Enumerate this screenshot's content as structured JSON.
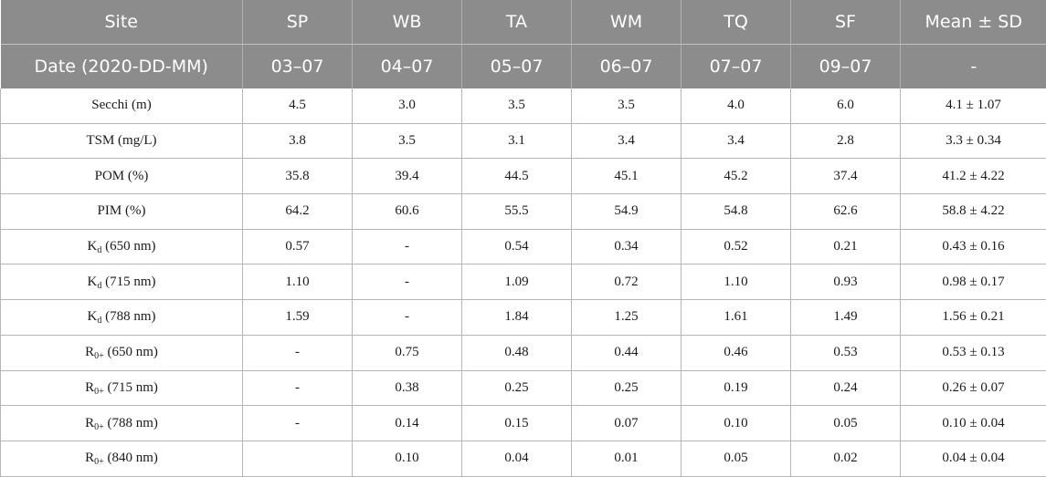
{
  "header": {
    "row1": [
      "Site",
      "SP",
      "WB",
      "TA",
      "WM",
      "TQ",
      "SF",
      "Mean ± SD"
    ],
    "row2": [
      "Date (2020-DD-MM)",
      "03–07",
      "04–07",
      "05–07",
      "06–07",
      "07–07",
      "09–07",
      "-"
    ]
  },
  "rows": [
    {
      "label": {
        "main": "Secchi (m)",
        "sub": "",
        "tail": ""
      },
      "cells": [
        "4.5",
        "3.0",
        "3.5",
        "3.5",
        "4.0",
        "6.0",
        "4.1 ± 1.07"
      ]
    },
    {
      "label": {
        "main": "TSM (mg/L)",
        "sub": "",
        "tail": ""
      },
      "cells": [
        "3.8",
        "3.5",
        "3.1",
        "3.4",
        "3.4",
        "2.8",
        "3.3 ± 0.34"
      ]
    },
    {
      "label": {
        "main": "POM (%)",
        "sub": "",
        "tail": ""
      },
      "cells": [
        "35.8",
        "39.4",
        "44.5",
        "45.1",
        "45.2",
        "37.4",
        "41.2 ± 4.22"
      ]
    },
    {
      "label": {
        "main": "PIM (%)",
        "sub": "",
        "tail": ""
      },
      "cells": [
        "64.2",
        "60.6",
        "55.5",
        "54.9",
        "54.8",
        "62.6",
        "58.8 ± 4.22"
      ]
    },
    {
      "label": {
        "main": "K",
        "sub": "d",
        "tail": " (650 nm)"
      },
      "cells": [
        "0.57",
        "-",
        "0.54",
        "0.34",
        "0.52",
        "0.21",
        "0.43 ± 0.16"
      ]
    },
    {
      "label": {
        "main": "K",
        "sub": "d",
        "tail": " (715 nm)"
      },
      "cells": [
        "1.10",
        "-",
        "1.09",
        "0.72",
        "1.10",
        "0.93",
        "0.98 ± 0.17"
      ]
    },
    {
      "label": {
        "main": "K",
        "sub": "d",
        "tail": " (788 nm)"
      },
      "cells": [
        "1.59",
        "-",
        "1.84",
        "1.25",
        "1.61",
        "1.49",
        "1.56 ± 0.21"
      ]
    },
    {
      "label": {
        "main": "R",
        "sub": "0+",
        "tail": " (650 nm)"
      },
      "cells": [
        "-",
        "0.75",
        "0.48",
        "0.44",
        "0.46",
        "0.53",
        "0.53 ± 0.13"
      ]
    },
    {
      "label": {
        "main": "R",
        "sub": "0+",
        "tail": " (715 nm)"
      },
      "cells": [
        "-",
        "0.38",
        "0.25",
        "0.25",
        "0.19",
        "0.24",
        "0.26 ± 0.07"
      ]
    },
    {
      "label": {
        "main": "R",
        "sub": "0+",
        "tail": " (788 nm)"
      },
      "cells": [
        "-",
        "0.14",
        "0.15",
        "0.07",
        "0.10",
        "0.05",
        "0.10 ± 0.04"
      ]
    },
    {
      "label": {
        "main": "R",
        "sub": "0+",
        "tail": " (840 nm)"
      },
      "cells": [
        "",
        "0.10",
        "0.04",
        "0.01",
        "0.05",
        "0.02",
        "0.04 ± 0.04"
      ]
    }
  ]
}
